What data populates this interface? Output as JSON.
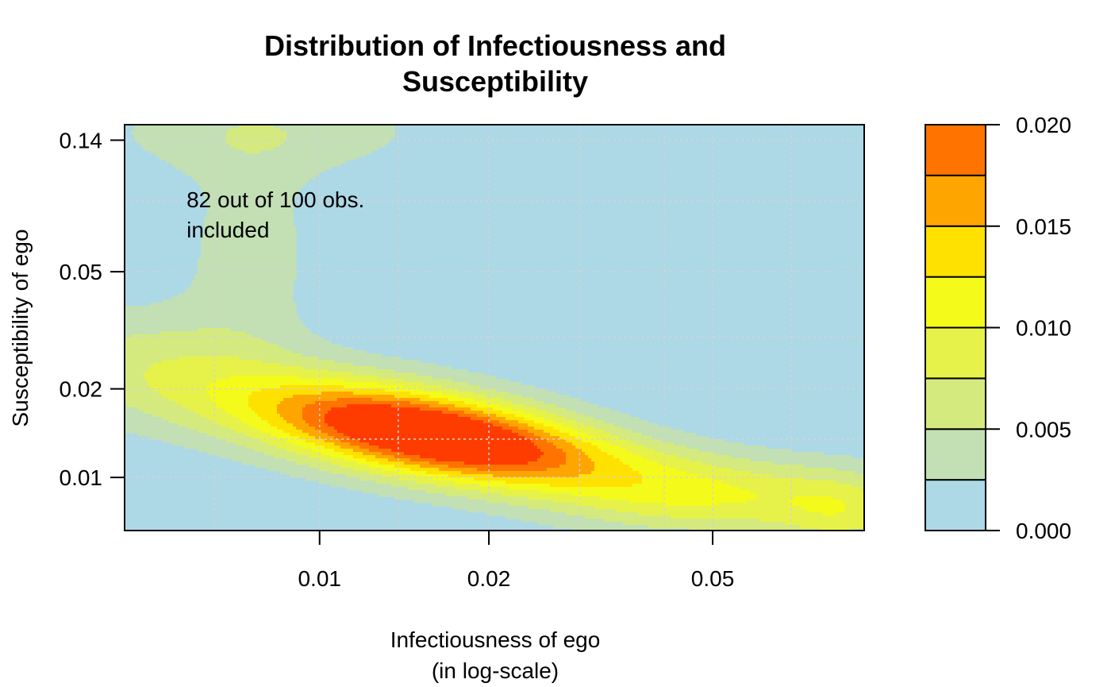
{
  "chart_data": {
    "type": "heatmap",
    "title_lines": [
      "Distribution of Infectiousness and",
      "Susceptibility"
    ],
    "xlabel_lines": [
      "Infectiousness of ego",
      "(in log-scale)"
    ],
    "ylabel": "Susceptibility of ego",
    "x_scale": "log",
    "y_scale": "log",
    "xlim": [
      0.0045,
      0.093
    ],
    "ylim": [
      0.0066,
      0.158
    ],
    "x_ticks": [
      {
        "value": 0.01,
        "label": "0.01"
      },
      {
        "value": 0.02,
        "label": "0.02"
      },
      {
        "value": 0.05,
        "label": "0.05"
      }
    ],
    "y_ticks": [
      {
        "value": 0.01,
        "label": "0.01"
      },
      {
        "value": 0.02,
        "label": "0.02"
      },
      {
        "value": 0.05,
        "label": "0.05"
      },
      {
        "value": 0.14,
        "label": "0.14"
      }
    ],
    "grid_x": [
      0.0065,
      0.01,
      0.0138,
      0.02,
      0.029,
      0.041,
      0.05,
      0.069
    ],
    "grid_y": [
      0.01,
      0.0135,
      0.02,
      0.03,
      0.05,
      0.087,
      0.14
    ],
    "annotation_lines": [
      "82 out of 100 obs.",
      "included"
    ],
    "annotation_at": {
      "x": 0.0058,
      "y": 0.087
    },
    "legend": {
      "position": "right",
      "breaks": [
        0.0,
        0.0025,
        0.005,
        0.0075,
        0.01,
        0.0125,
        0.015,
        0.0175,
        0.02
      ],
      "colors": [
        "#ADD8E6",
        "#C2E0B4",
        "#D4EA7E",
        "#E6F24A",
        "#F4FA1A",
        "#FFE100",
        "#FFA500",
        "#FF7300",
        "#FF3C00",
        "#FF0000"
      ],
      "tick_labels": [
        {
          "value": 0.0,
          "label": "0.000"
        },
        {
          "value": 0.005,
          "label": "0.005"
        },
        {
          "value": 0.01,
          "label": "0.010"
        },
        {
          "value": 0.015,
          "label": "0.015"
        },
        {
          "value": 0.02,
          "label": "0.020"
        }
      ]
    },
    "density_peaks": [
      {
        "x": 0.0155,
        "y": 0.0143,
        "height": 0.0195,
        "sx": 0.42,
        "sy": 0.22,
        "rho": -0.55
      },
      {
        "x": 0.0125,
        "y": 0.0165,
        "height": 0.005,
        "sx": 0.55,
        "sy": 0.32,
        "rho": -0.5
      },
      {
        "x": 0.022,
        "y": 0.0112,
        "height": 0.0055,
        "sx": 0.55,
        "sy": 0.22,
        "rho": -0.45
      },
      {
        "x": 0.052,
        "y": 0.0085,
        "height": 0.0075,
        "sx": 0.38,
        "sy": 0.2,
        "rho": 0.0
      },
      {
        "x": 0.0048,
        "y": 0.024,
        "height": 0.0048,
        "sx": 0.32,
        "sy": 0.3,
        "rho": -0.1
      },
      {
        "x": 0.0075,
        "y": 0.06,
        "height": 0.0038,
        "sx": 0.18,
        "sy": 0.5,
        "rho": 0.0
      },
      {
        "x": 0.008,
        "y": 0.15,
        "height": 0.0042,
        "sx": 0.45,
        "sy": 0.22,
        "rho": 0.0
      },
      {
        "x": 0.088,
        "y": 0.0075,
        "height": 0.006,
        "sx": 0.18,
        "sy": 0.2,
        "rho": 0.0
      }
    ]
  }
}
